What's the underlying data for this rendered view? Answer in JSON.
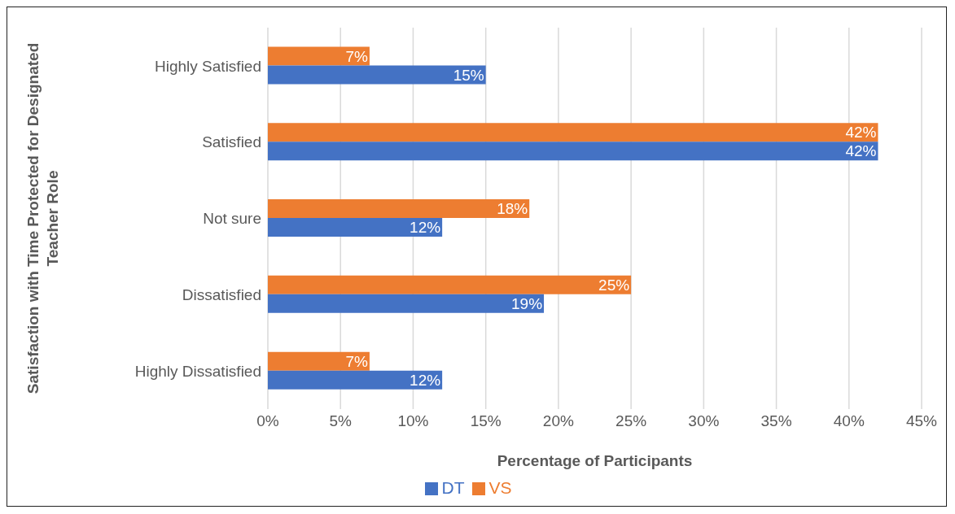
{
  "chart_data": {
    "type": "bar",
    "orientation": "horizontal",
    "xlabel": "Percentage of Participants",
    "ylabel": "Satisfaction with Time Protected for Designated Teacher Role",
    "categories": [
      "Highly Satisfied",
      "Satisfied",
      "Not sure",
      "Dissatisfied",
      "Highly Dissatisfied"
    ],
    "series": [
      {
        "name": "VS",
        "color": "#ed7d31",
        "values": [
          7,
          42,
          18,
          25,
          7
        ],
        "value_labels": [
          "7%",
          "42%",
          "18%",
          "25%",
          "7%"
        ]
      },
      {
        "name": "DT",
        "color": "#4472c4",
        "values": [
          15,
          42,
          12,
          19,
          12
        ],
        "value_labels": [
          "15%",
          "42%",
          "12%",
          "19%",
          "12%"
        ]
      }
    ],
    "xlim": [
      0,
      45
    ],
    "xticks": [
      {
        "value": 0,
        "label": "0%"
      },
      {
        "value": 5,
        "label": "5%"
      },
      {
        "value": 10,
        "label": "10%"
      },
      {
        "value": 15,
        "label": "15%"
      },
      {
        "value": 20,
        "label": "20%"
      },
      {
        "value": 25,
        "label": "25%"
      },
      {
        "value": 30,
        "label": "30%"
      },
      {
        "value": 35,
        "label": "35%"
      },
      {
        "value": 40,
        "label": "40%"
      },
      {
        "value": 45,
        "label": "45%"
      }
    ],
    "grid": "x",
    "legend": "bottom"
  }
}
